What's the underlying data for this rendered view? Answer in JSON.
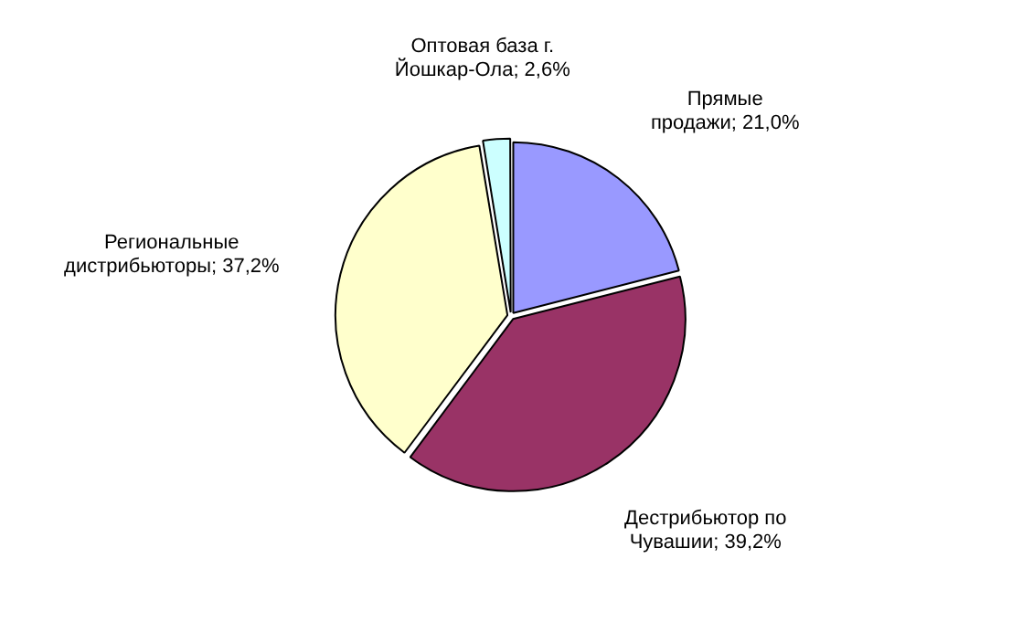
{
  "chart_data": {
    "type": "pie",
    "categories": [
      "Прямые продажи",
      "Дестрибьютор по Чувашии",
      "Региональные дистрибьюторы",
      "Оптовая база г. Йошкар-Ола"
    ],
    "values": [
      21.0,
      39.2,
      37.2,
      2.6
    ],
    "value_labels": [
      "21,0%",
      "39,2%",
      "37,2%",
      "2,6%"
    ],
    "colors": [
      "#9999ff",
      "#993366",
      "#ffffcc",
      "#ccffff"
    ],
    "legend": false
  }
}
